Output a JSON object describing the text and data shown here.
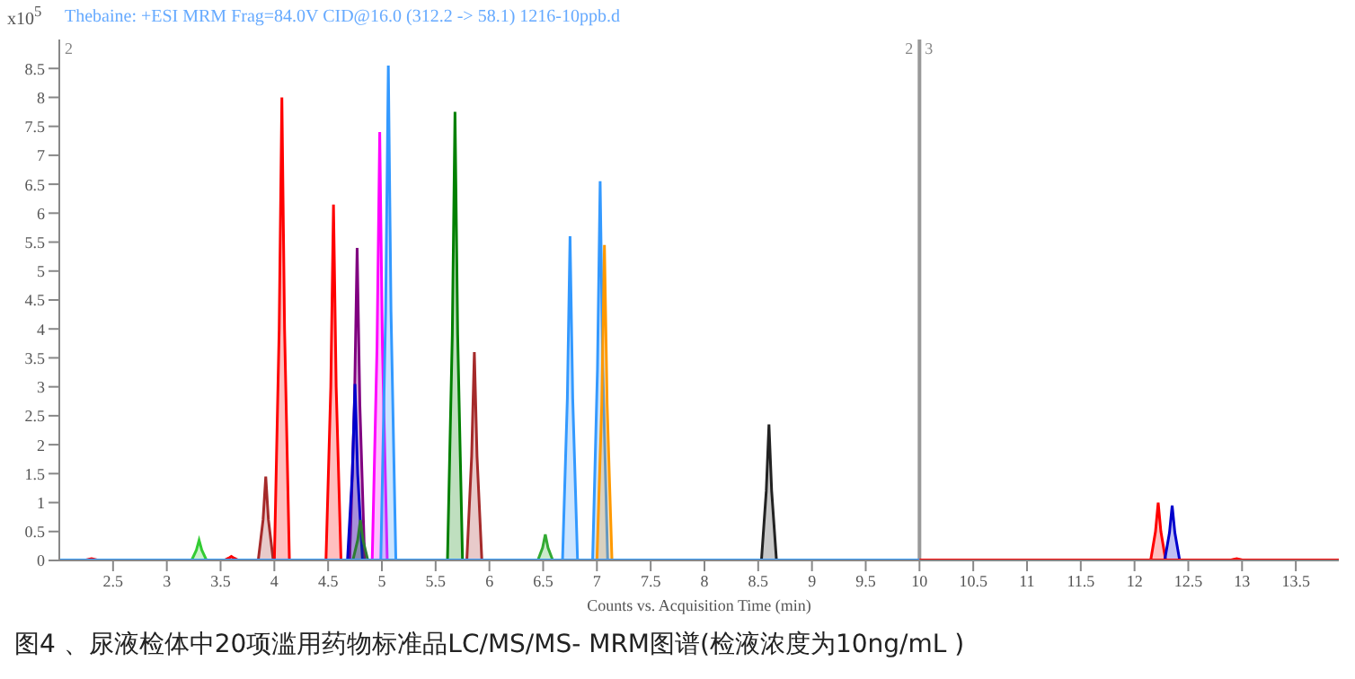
{
  "chart_data": {
    "type": "area",
    "title": "Thebaine: +ESI MRM Frag=84.0V CID@16.0 (312.2 -> 58.1) 1216-10ppb.d",
    "xlabel": "Counts vs. Acquisition Time (min)",
    "ylabel": "x10$^{5}$",
    "xlim": [
      2,
      13.9
    ],
    "xticks": [
      2.5,
      3,
      3.5,
      4,
      4.5,
      5,
      5.5,
      6,
      6.5,
      7,
      7.5,
      8,
      8.5,
      9,
      9.5,
      10,
      10.5,
      11,
      11.5,
      12,
      12.5,
      13,
      13.5
    ],
    "ylim": [
      0,
      9
    ],
    "yticks": [
      0,
      0.5,
      1,
      1.5,
      2,
      2.5,
      3,
      3.5,
      4,
      4.5,
      5,
      5.5,
      6,
      6.5,
      7,
      7.5,
      8,
      8.5
    ],
    "ref_lines": [
      {
        "axis": "x",
        "value": 10,
        "color": "#999999"
      }
    ],
    "annotations": [
      "2",
      "2",
      "3",
      "图4 、尿液检体中20项滥用药物标准品LC/MS/MS- MRM图谱(检液浓度为10ng/mL )"
    ],
    "series": [
      {
        "type": "line",
        "color": "#3399ff",
        "x": [
          2,
          10
        ],
        "values": [
          0,
          0
        ]
      },
      {
        "type": "line",
        "color": "#ff0000",
        "x": [
          10,
          13.9
        ],
        "values": [
          0,
          0
        ]
      },
      {
        "color": "#ff0000",
        "x": [
          2.23,
          2.275,
          2.3,
          2.325,
          2.37
        ],
        "values": [
          0,
          0.02,
          0.03,
          0.02,
          0
        ]
      },
      {
        "color": "#33cc33",
        "x": [
          3.23,
          3.275,
          3.3,
          3.325,
          3.37
        ],
        "values": [
          0,
          0.18,
          0.35,
          0.18,
          0
        ]
      },
      {
        "color": "#ff0000",
        "x": [
          3.53,
          3.575,
          3.6,
          3.625,
          3.67
        ],
        "values": [
          0,
          0.04,
          0.07,
          0.04,
          0
        ]
      },
      {
        "color": "#a52a2a",
        "x": [
          3.85,
          3.895,
          3.92,
          3.945,
          3.99
        ],
        "values": [
          0,
          0.7,
          1.45,
          0.7,
          0
        ]
      },
      {
        "color": "#ff0000",
        "x": [
          4.0,
          4.045,
          4.07,
          4.095,
          4.14
        ],
        "values": [
          0,
          4,
          8,
          4,
          0
        ]
      },
      {
        "color": "#ff0000",
        "x": [
          4.48,
          4.525,
          4.55,
          4.575,
          4.62
        ],
        "values": [
          0,
          3,
          6.15,
          3,
          0
        ]
      },
      {
        "color": "#800080",
        "x": [
          4.7,
          4.745,
          4.77,
          4.795,
          4.84
        ],
        "values": [
          0,
          2.7,
          5.4,
          2.7,
          0
        ]
      },
      {
        "color": "#0000cc",
        "x": [
          4.68,
          4.725,
          4.75,
          4.775,
          4.82
        ],
        "values": [
          0,
          1.5,
          3.05,
          1.5,
          0
        ]
      },
      {
        "color": "#2e7d32",
        "x": [
          4.73,
          4.775,
          4.8,
          4.825,
          4.87
        ],
        "values": [
          0,
          0.35,
          0.7,
          0.35,
          0
        ]
      },
      {
        "color": "#ff00ff",
        "x": [
          4.91,
          4.955,
          4.98,
          5.005,
          5.05
        ],
        "values": [
          0,
          3.7,
          7.4,
          3.7,
          0
        ]
      },
      {
        "color": "#3399ff",
        "x": [
          4.99,
          5.035,
          5.06,
          5.085,
          5.13
        ],
        "values": [
          0,
          4.3,
          8.55,
          4.3,
          0
        ]
      },
      {
        "color": "#008000",
        "x": [
          5.61,
          5.655,
          5.68,
          5.705,
          5.75
        ],
        "values": [
          0,
          3.9,
          7.75,
          3.9,
          0
        ]
      },
      {
        "color": "#a52a2a",
        "x": [
          5.79,
          5.835,
          5.86,
          5.885,
          5.93
        ],
        "values": [
          0,
          1.8,
          3.6,
          1.8,
          0
        ]
      },
      {
        "color": "#33aa33",
        "x": [
          6.45,
          6.495,
          6.52,
          6.545,
          6.59
        ],
        "values": [
          0,
          0.22,
          0.45,
          0.22,
          0
        ]
      },
      {
        "color": "#3399ff",
        "x": [
          6.68,
          6.725,
          6.75,
          6.775,
          6.82
        ],
        "values": [
          0,
          2.8,
          5.6,
          2.8,
          0
        ]
      },
      {
        "color": "#3399ff",
        "x": [
          6.96,
          7.005,
          7.03,
          7.055,
          7.1
        ],
        "values": [
          0,
          3.3,
          6.55,
          3.3,
          0
        ]
      },
      {
        "color": "#ff9900",
        "x": [
          7.0,
          7.045,
          7.07,
          7.095,
          7.14
        ],
        "values": [
          0,
          2.7,
          5.45,
          2.7,
          0
        ]
      },
      {
        "color": "#222222",
        "x": [
          8.53,
          8.575,
          8.6,
          8.625,
          8.67
        ],
        "values": [
          0,
          1.2,
          2.35,
          1.2,
          0
        ]
      },
      {
        "color": "#ff0000",
        "x": [
          12.15,
          12.195,
          12.22,
          12.245,
          12.29
        ],
        "values": [
          0,
          0.5,
          1.0,
          0.5,
          0
        ]
      },
      {
        "color": "#0000cc",
        "x": [
          12.28,
          12.325,
          12.35,
          12.375,
          12.42
        ],
        "values": [
          0,
          0.48,
          0.95,
          0.48,
          0
        ]
      },
      {
        "color": "#ff0000",
        "x": [
          12.88,
          12.925,
          12.95,
          12.975,
          13.02
        ],
        "values": [
          0,
          0.02,
          0.03,
          0.02,
          0
        ]
      }
    ]
  }
}
